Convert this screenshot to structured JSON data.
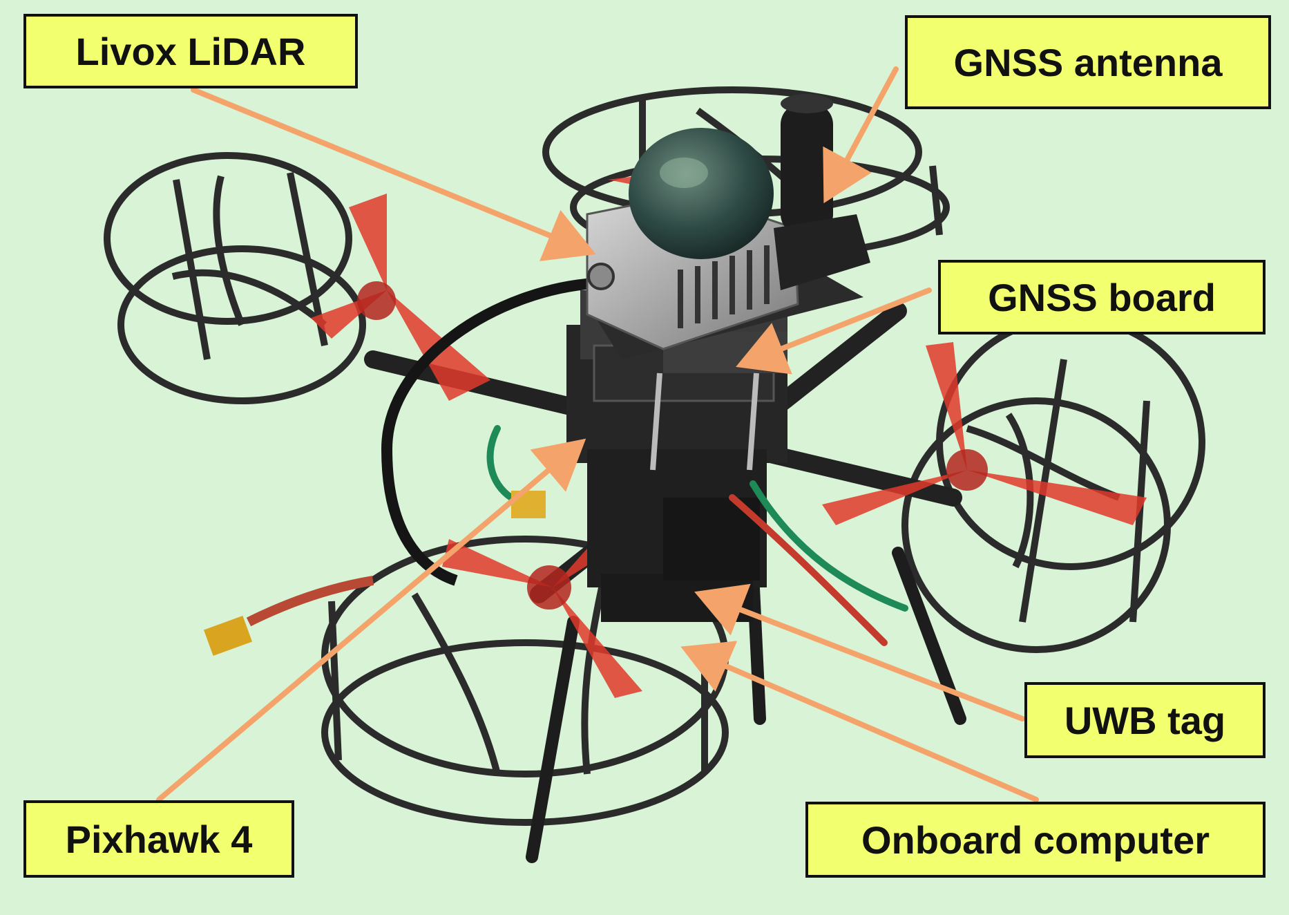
{
  "labels": {
    "lidar": "Livox LiDAR",
    "gnss_antenna": "GNSS antenna",
    "gnss_board": "GNSS board",
    "uwb_tag": "UWB tag",
    "onboard_computer": "Onboard computer",
    "pixhawk": "Pixhawk 4"
  },
  "colors": {
    "background": "#d9f3d6",
    "label_fill": "#f2ff6e",
    "arrow": "#f4a46a",
    "frame": "#2b2b2b",
    "propeller": "#e0392b"
  }
}
